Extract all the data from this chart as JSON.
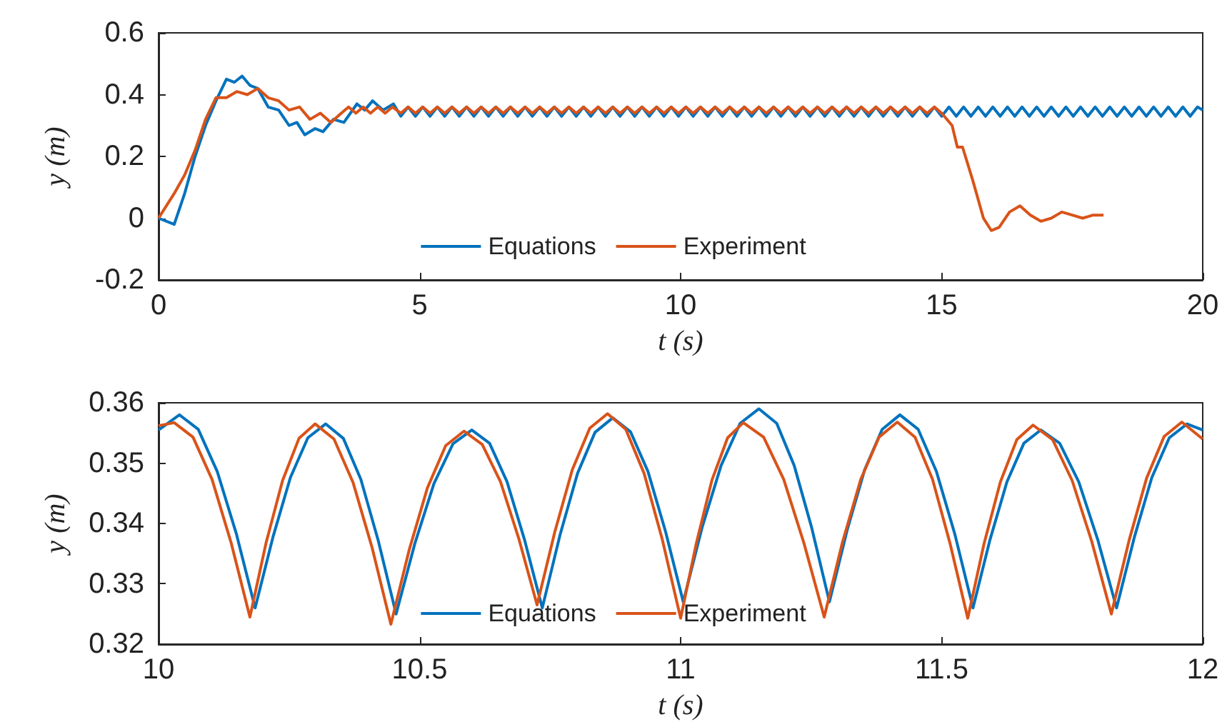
{
  "chart_data": [
    {
      "type": "line",
      "xlabel": "t (s)",
      "ylabel": "y (m)",
      "xlim": [
        0,
        20
      ],
      "xticks": [
        0,
        5,
        10,
        15,
        20
      ],
      "ylim": [
        -0.2,
        0.6
      ],
      "yticks": [
        -0.2,
        0,
        0.2,
        0.4,
        0.6
      ],
      "legend": "bottom",
      "marker": "none",
      "series": [
        {
          "name": "Equations",
          "color": "#0072bd",
          "x": [
            0,
            0.3,
            0.5,
            0.7,
            0.9,
            1.1,
            1.3,
            1.45,
            1.6,
            1.75,
            1.9,
            2.1,
            2.3,
            2.5,
            2.65,
            2.8,
            3.0,
            3.15,
            3.35,
            3.55,
            3.8,
            3.95,
            4.1,
            4.3,
            4.5,
            4.64,
            4.78,
            4.92,
            5.06,
            5.2,
            5.34,
            5.48,
            5.62,
            5.76,
            5.9,
            6.04,
            6.18,
            6.32,
            6.46,
            6.6,
            6.74,
            6.88,
            7.02,
            7.16,
            7.3,
            7.44,
            7.58,
            7.72,
            7.86,
            8,
            8.14,
            8.28,
            8.42,
            8.56,
            8.7,
            8.84,
            8.98,
            9.12,
            9.26,
            9.4,
            9.54,
            9.68,
            9.82,
            9.96,
            10.1,
            10.24,
            10.38,
            10.52,
            10.66,
            10.8,
            10.94,
            11.08,
            11.22,
            11.36,
            11.5,
            11.64,
            11.78,
            11.92,
            12.06,
            12.2,
            12.34,
            12.48,
            12.62,
            12.76,
            12.9,
            13.04,
            13.18,
            13.32,
            13.46,
            13.6,
            13.74,
            13.88,
            14.02,
            14.16,
            14.3,
            14.44,
            14.58,
            14.72,
            14.86,
            15,
            15.14,
            15.28,
            15.42,
            15.56,
            15.7,
            15.84,
            15.98,
            16.12,
            16.26,
            16.4,
            16.54,
            16.68,
            16.82,
            16.96,
            17.1,
            17.24,
            17.38,
            17.52,
            17.66,
            17.8,
            17.94,
            18.08,
            18.22,
            18.36,
            18.5,
            18.64,
            18.78,
            18.92,
            19.06,
            19.2,
            19.34,
            19.48,
            19.62,
            19.76,
            19.9,
            20
          ],
          "values": [
            0,
            -0.02,
            0.08,
            0.2,
            0.3,
            0.38,
            0.45,
            0.44,
            0.46,
            0.43,
            0.42,
            0.36,
            0.35,
            0.3,
            0.31,
            0.27,
            0.29,
            0.28,
            0.32,
            0.31,
            0.37,
            0.35,
            0.38,
            0.35,
            0.37,
            0.33,
            0.36,
            0.33,
            0.36,
            0.33,
            0.36,
            0.33,
            0.36,
            0.33,
            0.36,
            0.33,
            0.36,
            0.33,
            0.36,
            0.33,
            0.36,
            0.33,
            0.36,
            0.33,
            0.36,
            0.33,
            0.36,
            0.33,
            0.36,
            0.33,
            0.36,
            0.33,
            0.36,
            0.33,
            0.36,
            0.33,
            0.36,
            0.33,
            0.36,
            0.33,
            0.36,
            0.33,
            0.36,
            0.33,
            0.36,
            0.33,
            0.36,
            0.33,
            0.36,
            0.33,
            0.36,
            0.33,
            0.36,
            0.33,
            0.36,
            0.33,
            0.36,
            0.33,
            0.36,
            0.33,
            0.36,
            0.33,
            0.36,
            0.33,
            0.36,
            0.33,
            0.36,
            0.33,
            0.36,
            0.33,
            0.36,
            0.33,
            0.36,
            0.33,
            0.36,
            0.33,
            0.36,
            0.33,
            0.36,
            0.33,
            0.36,
            0.33,
            0.36,
            0.33,
            0.36,
            0.33,
            0.36,
            0.33,
            0.36,
            0.33,
            0.36,
            0.33,
            0.36,
            0.33,
            0.36,
            0.33,
            0.36,
            0.33,
            0.36,
            0.33,
            0.36,
            0.33,
            0.36,
            0.33,
            0.36,
            0.33,
            0.36,
            0.33,
            0.36,
            0.33,
            0.36,
            0.33,
            0.36,
            0.33,
            0.36,
            0.35
          ]
        },
        {
          "name": "Experiment",
          "color": "#d95319",
          "x": [
            0,
            0.3,
            0.5,
            0.7,
            0.9,
            1.1,
            1.3,
            1.5,
            1.7,
            1.9,
            2.1,
            2.3,
            2.5,
            2.7,
            2.9,
            3.1,
            3.3,
            3.5,
            3.64,
            3.78,
            3.92,
            4.06,
            4.2,
            4.34,
            4.48,
            4.64,
            4.78,
            4.92,
            5.06,
            5.2,
            5.34,
            5.48,
            5.62,
            5.76,
            5.9,
            6.04,
            6.18,
            6.32,
            6.46,
            6.6,
            6.74,
            6.88,
            7.02,
            7.16,
            7.3,
            7.44,
            7.58,
            7.72,
            7.86,
            8,
            8.14,
            8.28,
            8.42,
            8.56,
            8.7,
            8.84,
            8.98,
            9.12,
            9.26,
            9.4,
            9.54,
            9.68,
            9.82,
            9.96,
            10.1,
            10.24,
            10.38,
            10.52,
            10.66,
            10.8,
            10.94,
            11.08,
            11.22,
            11.36,
            11.5,
            11.64,
            11.78,
            11.92,
            12.06,
            12.2,
            12.34,
            12.48,
            12.62,
            12.76,
            12.9,
            13.04,
            13.18,
            13.32,
            13.46,
            13.6,
            13.74,
            13.88,
            14.02,
            14.16,
            14.3,
            14.44,
            14.58,
            14.72,
            14.86,
            15,
            15.2,
            15.3,
            15.4,
            15.6,
            15.8,
            15.95,
            16.1,
            16.3,
            16.5,
            16.7,
            16.9,
            17.1,
            17.3,
            17.5,
            17.7,
            17.9,
            18.1
          ],
          "values": [
            0,
            0.08,
            0.14,
            0.22,
            0.32,
            0.39,
            0.39,
            0.41,
            0.4,
            0.42,
            0.39,
            0.38,
            0.35,
            0.36,
            0.32,
            0.34,
            0.31,
            0.34,
            0.36,
            0.34,
            0.36,
            0.34,
            0.36,
            0.34,
            0.36,
            0.34,
            0.36,
            0.34,
            0.36,
            0.34,
            0.36,
            0.34,
            0.36,
            0.34,
            0.36,
            0.34,
            0.36,
            0.34,
            0.36,
            0.34,
            0.36,
            0.34,
            0.36,
            0.34,
            0.36,
            0.34,
            0.36,
            0.34,
            0.36,
            0.34,
            0.36,
            0.34,
            0.36,
            0.34,
            0.36,
            0.34,
            0.36,
            0.34,
            0.36,
            0.34,
            0.36,
            0.34,
            0.36,
            0.34,
            0.36,
            0.34,
            0.36,
            0.34,
            0.36,
            0.34,
            0.36,
            0.34,
            0.36,
            0.34,
            0.36,
            0.34,
            0.36,
            0.34,
            0.36,
            0.34,
            0.36,
            0.34,
            0.36,
            0.34,
            0.36,
            0.34,
            0.36,
            0.34,
            0.36,
            0.34,
            0.36,
            0.34,
            0.36,
            0.34,
            0.36,
            0.34,
            0.36,
            0.34,
            0.36,
            0.34,
            0.3,
            0.23,
            0.23,
            0.12,
            0,
            -0.04,
            -0.03,
            0.02,
            0.04,
            0.01,
            -0.01,
            0,
            0.02,
            0.01,
            0,
            0.01,
            0.01
          ]
        }
      ]
    },
    {
      "type": "line",
      "xlabel": "t (s)",
      "ylabel": "y (m)",
      "xlim": [
        10,
        12
      ],
      "xticks": [
        10,
        10.5,
        11,
        11.5,
        12
      ],
      "ylim": [
        0.32,
        0.36
      ],
      "yticks": [
        0.32,
        0.33,
        0.34,
        0.35,
        0.36
      ],
      "legend": "bottom",
      "marker": "none",
      "series": [
        {
          "name": "Equations",
          "color": "#0072bd",
          "x": [
            10,
            10.04,
            10.076,
            10.1125,
            10.149,
            10.185,
            10.219,
            10.2525,
            10.286,
            10.32,
            10.354,
            10.3875,
            10.421,
            10.455,
            10.491,
            10.5275,
            10.564,
            10.6,
            10.634,
            10.6675,
            10.701,
            10.735,
            10.769,
            10.8025,
            10.836,
            10.87,
            10.904,
            10.9375,
            10.971,
            11.005,
            11.041,
            11.0775,
            11.114,
            11.15,
            11.184,
            11.2175,
            11.251,
            11.285,
            11.319,
            11.3525,
            11.386,
            11.42,
            11.455,
            11.49,
            11.525,
            11.56,
            11.5925,
            11.625,
            11.6575,
            11.69,
            11.726,
            11.7625,
            11.799,
            11.835,
            11.869,
            11.9025,
            11.936,
            11.97,
            12
          ],
          "values": [
            0.3555,
            0.358,
            0.3556,
            0.3486,
            0.3383,
            0.326,
            0.3377,
            0.3476,
            0.3542,
            0.3565,
            0.3541,
            0.3473,
            0.3371,
            0.325,
            0.3367,
            0.3466,
            0.3532,
            0.3555,
            0.3533,
            0.3469,
            0.3373,
            0.326,
            0.3381,
            0.3483,
            0.3551,
            0.3575,
            0.3552,
            0.3486,
            0.3387,
            0.327,
            0.3393,
            0.3496,
            0.3566,
            0.359,
            0.3566,
            0.3496,
            0.3393,
            0.327,
            0.3389,
            0.3489,
            0.3556,
            0.358,
            0.3556,
            0.3486,
            0.3383,
            0.326,
            0.3373,
            0.3469,
            0.3533,
            0.3555,
            0.3533,
            0.3469,
            0.3373,
            0.326,
            0.3377,
            0.3476,
            0.3542,
            0.3565,
            0.3555
          ]
        },
        {
          "name": "Experiment",
          "color": "#d95319",
          "x": [
            10,
            10.03,
            10.066,
            10.1025,
            10.139,
            10.175,
            10.206,
            10.2375,
            10.269,
            10.3,
            10.336,
            10.3725,
            10.409,
            10.445,
            10.48,
            10.515,
            10.55,
            10.585,
            10.62,
            10.655,
            10.69,
            10.725,
            10.759,
            10.7925,
            10.826,
            10.86,
            10.895,
            10.93,
            10.965,
            11,
            11.03,
            11.06,
            11.09,
            11.12,
            11.159,
            11.1975,
            11.236,
            11.275,
            11.31,
            11.345,
            11.38,
            11.415,
            11.449,
            11.4825,
            11.516,
            11.55,
            11.581,
            11.6125,
            11.644,
            11.675,
            11.7125,
            11.75,
            11.7875,
            11.825,
            11.859,
            11.8925,
            11.926,
            11.96,
            12
          ],
          "values": [
            0.3562,
            0.3567,
            0.3543,
            0.3473,
            0.3368,
            0.3245,
            0.3368,
            0.3471,
            0.3541,
            0.3565,
            0.354,
            0.3468,
            0.336,
            0.3233,
            0.3356,
            0.3459,
            0.3529,
            0.3553,
            0.3531,
            0.3469,
            0.3375,
            0.3265,
            0.3386,
            0.3489,
            0.3558,
            0.3582,
            0.3556,
            0.3483,
            0.3373,
            0.3243,
            0.3367,
            0.3472,
            0.3542,
            0.3567,
            0.3543,
            0.3473,
            0.3368,
            0.3245,
            0.3369,
            0.3473,
            0.3543,
            0.3568,
            0.3543,
            0.3473,
            0.3367,
            0.3243,
            0.3366,
            0.3469,
            0.3539,
            0.3563,
            0.3539,
            0.3471,
            0.337,
            0.325,
            0.3372,
            0.3475,
            0.3544,
            0.3568,
            0.354
          ]
        }
      ]
    }
  ]
}
